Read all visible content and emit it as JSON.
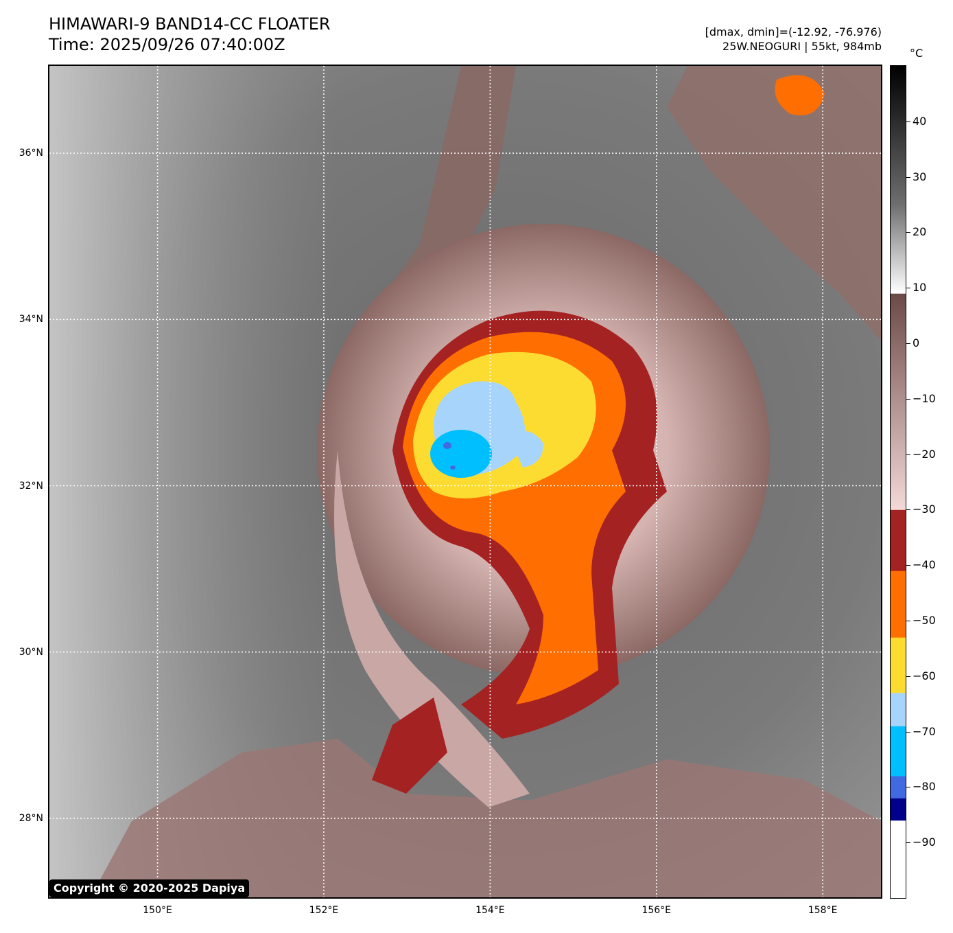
{
  "header": {
    "title_line1": "HIMAWARI-9 BAND14-CC FLOATER",
    "title_line2": "Time: 2025/09/26 07:40:00Z",
    "info_line1": "[dmax, dmin]=(-12.92, -76.976)",
    "info_line2": "25W.NEOGURI | 55kt, 984mb"
  },
  "map": {
    "lon_range": [
      148.7,
      158.7
    ],
    "lat_range": [
      27.05,
      37.05
    ],
    "lon_ticks": [
      {
        "value": 150,
        "label": "150°E"
      },
      {
        "value": 152,
        "label": "152°E"
      },
      {
        "value": 154,
        "label": "154°E"
      },
      {
        "value": 156,
        "label": "156°E"
      },
      {
        "value": 158,
        "label": "158°E"
      }
    ],
    "lat_ticks": [
      {
        "value": 36,
        "label": "36°N"
      },
      {
        "value": 34,
        "label": "34°N"
      },
      {
        "value": 32,
        "label": "32°N"
      },
      {
        "value": 30,
        "label": "30°N"
      },
      {
        "value": 28,
        "label": "28°N"
      }
    ],
    "gridlines": "dotted-white",
    "storm_center": {
      "lon": 153.55,
      "lat": 32.6
    }
  },
  "copyright": "Copyright © 2020-2025 Dapiya",
  "colorbar": {
    "unit": "°C",
    "range": [
      -100,
      50
    ],
    "ticks": [
      {
        "value": 40,
        "label": "40"
      },
      {
        "value": 30,
        "label": "30"
      },
      {
        "value": 20,
        "label": "20"
      },
      {
        "value": 10,
        "label": "10"
      },
      {
        "value": 0,
        "label": "0"
      },
      {
        "value": -10,
        "label": "−10"
      },
      {
        "value": -20,
        "label": "−20"
      },
      {
        "value": -30,
        "label": "−30"
      },
      {
        "value": -40,
        "label": "−40"
      },
      {
        "value": -50,
        "label": "−50"
      },
      {
        "value": -60,
        "label": "−60"
      },
      {
        "value": -70,
        "label": "−70"
      },
      {
        "value": -80,
        "label": "−80"
      },
      {
        "value": -90,
        "label": "−90"
      }
    ],
    "colors": {
      "warm_black": "#000000",
      "grey_mid": "#6e6e6e",
      "white_10": "#ffffff",
      "brown_top": "#6b4a46",
      "pink_low": "#f4d9d9",
      "red": "#a52222",
      "orange": "#ff6e00",
      "yellow": "#fddc32",
      "light_blue": "#a7d4fb",
      "cyan": "#00bfff",
      "royal_blue": "#4169e1",
      "navy": "#00008b",
      "white_bottom": "#ffffff"
    }
  }
}
